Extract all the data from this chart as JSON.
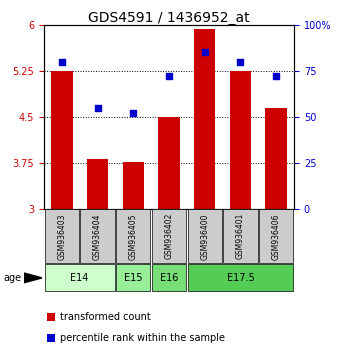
{
  "title": "GDS4591 / 1436952_at",
  "samples": [
    "GSM936403",
    "GSM936404",
    "GSM936405",
    "GSM936402",
    "GSM936400",
    "GSM936401",
    "GSM936406"
  ],
  "bar_values": [
    5.24,
    3.82,
    3.77,
    4.5,
    5.93,
    5.24,
    4.65
  ],
  "dot_values_right": [
    80,
    55,
    52,
    72,
    85,
    80,
    72
  ],
  "bar_color": "#cc0000",
  "dot_color": "#0000cc",
  "ylim_left": [
    3,
    6
  ],
  "ylim_right": [
    0,
    100
  ],
  "yticks_left": [
    3,
    3.75,
    4.5,
    5.25,
    6
  ],
  "yticks_right": [
    0,
    25,
    50,
    75,
    100
  ],
  "ytick_labels_left": [
    "3",
    "3.75",
    "4.5",
    "5.25",
    "6"
  ],
  "ytick_labels_right": [
    "0",
    "25",
    "50",
    "75",
    "100%"
  ],
  "age_groups": [
    {
      "label": "E14",
      "samples": [
        "GSM936403",
        "GSM936404"
      ],
      "color": "#ccffcc"
    },
    {
      "label": "E15",
      "samples": [
        "GSM936405"
      ],
      "color": "#99ee99"
    },
    {
      "label": "E16",
      "samples": [
        "GSM936402"
      ],
      "color": "#77dd77"
    },
    {
      "label": "E17.5",
      "samples": [
        "GSM936400",
        "GSM936401",
        "GSM936406"
      ],
      "color": "#55cc55"
    }
  ],
  "legend_tc_color": "#cc0000",
  "legend_pr_color": "#0000cc",
  "legend_tc_label": "transformed count",
  "legend_pr_label": "percentile rank within the sample",
  "age_label": "age",
  "bar_bottom": 3.0,
  "sample_box_color": "#cccccc",
  "title_fontsize": 10,
  "tick_fontsize": 7,
  "legend_fontsize": 7,
  "age_fontsize": 7,
  "sample_fontsize": 5.5
}
